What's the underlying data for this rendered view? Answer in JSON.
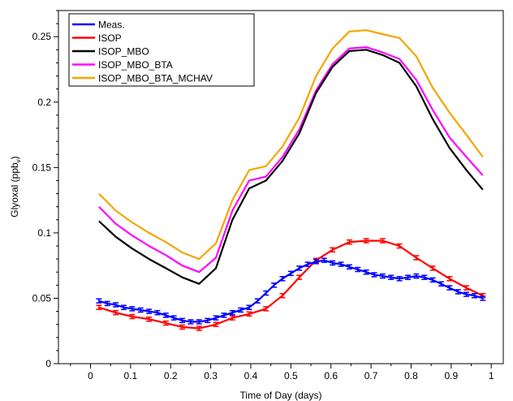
{
  "chart_data": {
    "type": "line",
    "xlabel": "Time of Day (days)",
    "ylabel": {
      "main": "Glyoxal (ppb",
      "sub": "v",
      "close": ")"
    },
    "xlim": [
      -0.08,
      1.03
    ],
    "ylim": [
      0,
      0.27
    ],
    "xticks": [
      "0",
      "0.1",
      "0.2",
      "0.3",
      "0.4",
      "0.5",
      "0.6",
      "0.7",
      "0.8",
      "0.9",
      "1"
    ],
    "yticks": [
      "0",
      "0.05",
      "0.1",
      "0.15",
      "0.2",
      "0.25"
    ],
    "legend_position": "top-left",
    "series": [
      {
        "name": "Meas.",
        "color": "#0000ff",
        "errorbars": true,
        "x": [
          0.021,
          0.042,
          0.063,
          0.083,
          0.104,
          0.125,
          0.146,
          0.167,
          0.188,
          0.208,
          0.229,
          0.25,
          0.271,
          0.292,
          0.313,
          0.333,
          0.354,
          0.375,
          0.396,
          0.417,
          0.438,
          0.458,
          0.479,
          0.5,
          0.521,
          0.542,
          0.563,
          0.583,
          0.604,
          0.625,
          0.646,
          0.667,
          0.688,
          0.708,
          0.729,
          0.75,
          0.771,
          0.792,
          0.813,
          0.833,
          0.854,
          0.875,
          0.896,
          0.917,
          0.938,
          0.958,
          0.979
        ],
        "y": [
          0.048,
          0.046,
          0.045,
          0.043,
          0.042,
          0.041,
          0.04,
          0.039,
          0.037,
          0.035,
          0.033,
          0.032,
          0.032,
          0.033,
          0.035,
          0.037,
          0.039,
          0.041,
          0.043,
          0.048,
          0.054,
          0.06,
          0.065,
          0.069,
          0.073,
          0.076,
          0.078,
          0.079,
          0.077,
          0.076,
          0.074,
          0.072,
          0.07,
          0.068,
          0.067,
          0.066,
          0.065,
          0.066,
          0.067,
          0.066,
          0.064,
          0.061,
          0.058,
          0.055,
          0.053,
          0.052,
          0.05
        ]
      },
      {
        "name": "ISOP",
        "color": "#ff0000",
        "errorbars": true,
        "x": [
          0.021,
          0.063,
          0.104,
          0.146,
          0.188,
          0.229,
          0.271,
          0.313,
          0.354,
          0.396,
          0.438,
          0.479,
          0.521,
          0.563,
          0.604,
          0.646,
          0.688,
          0.729,
          0.771,
          0.813,
          0.854,
          0.896,
          0.938,
          0.979
        ],
        "y": [
          0.043,
          0.039,
          0.036,
          0.034,
          0.031,
          0.028,
          0.027,
          0.03,
          0.035,
          0.038,
          0.042,
          0.052,
          0.066,
          0.079,
          0.087,
          0.093,
          0.094,
          0.094,
          0.09,
          0.081,
          0.073,
          0.065,
          0.058,
          0.052
        ]
      },
      {
        "name": "ISOP_MBO",
        "color": "#000000",
        "errorbars": false,
        "x": [
          0.021,
          0.063,
          0.104,
          0.146,
          0.188,
          0.229,
          0.271,
          0.313,
          0.354,
          0.396,
          0.438,
          0.479,
          0.521,
          0.563,
          0.604,
          0.646,
          0.688,
          0.729,
          0.771,
          0.813,
          0.854,
          0.896,
          0.938,
          0.979
        ],
        "y": [
          0.109,
          0.097,
          0.088,
          0.08,
          0.073,
          0.066,
          0.061,
          0.073,
          0.11,
          0.134,
          0.14,
          0.155,
          0.176,
          0.207,
          0.227,
          0.239,
          0.24,
          0.236,
          0.23,
          0.212,
          0.187,
          0.165,
          0.148,
          0.133
        ]
      },
      {
        "name": "ISOP_MBO_BTA",
        "color": "#ff00ff",
        "errorbars": false,
        "x": [
          0.021,
          0.063,
          0.104,
          0.146,
          0.188,
          0.229,
          0.271,
          0.313,
          0.354,
          0.396,
          0.438,
          0.479,
          0.521,
          0.563,
          0.604,
          0.646,
          0.688,
          0.729,
          0.771,
          0.813,
          0.854,
          0.896,
          0.938,
          0.979
        ],
        "y": [
          0.12,
          0.107,
          0.098,
          0.09,
          0.083,
          0.075,
          0.07,
          0.081,
          0.117,
          0.14,
          0.143,
          0.158,
          0.179,
          0.209,
          0.229,
          0.241,
          0.242,
          0.238,
          0.233,
          0.217,
          0.194,
          0.173,
          0.158,
          0.144
        ]
      },
      {
        "name": "ISOP_MBO_BTA_MCHAV",
        "color": "#f5a500",
        "errorbars": false,
        "x": [
          0.021,
          0.063,
          0.104,
          0.146,
          0.188,
          0.229,
          0.271,
          0.313,
          0.354,
          0.396,
          0.438,
          0.479,
          0.521,
          0.563,
          0.604,
          0.646,
          0.688,
          0.729,
          0.771,
          0.813,
          0.854,
          0.896,
          0.938,
          0.979
        ],
        "y": [
          0.13,
          0.117,
          0.108,
          0.1,
          0.093,
          0.085,
          0.08,
          0.092,
          0.125,
          0.148,
          0.151,
          0.166,
          0.188,
          0.22,
          0.241,
          0.254,
          0.255,
          0.252,
          0.249,
          0.235,
          0.211,
          0.192,
          0.175,
          0.158
        ]
      }
    ]
  }
}
